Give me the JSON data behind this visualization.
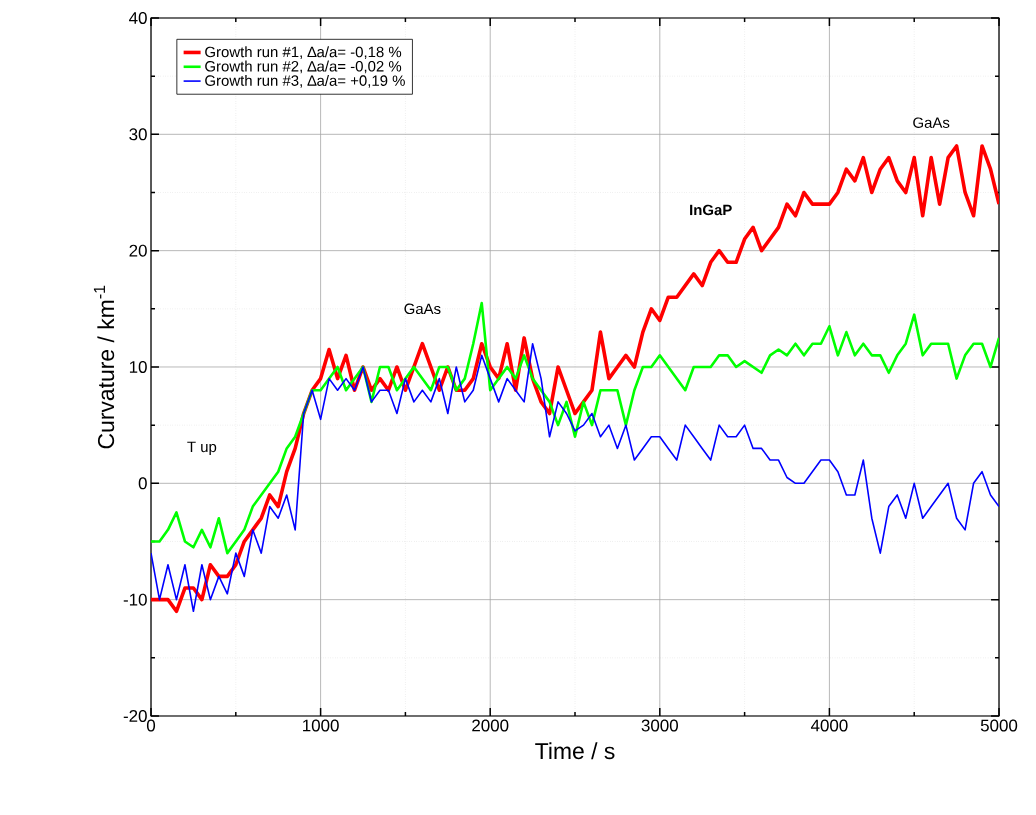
{
  "chart_data": {
    "type": "line",
    "xlabel": "Time / s",
    "ylabel": "Curvature / km$^{-1}$",
    "xlim": [
      0,
      5000
    ],
    "ylim": [
      -20,
      40
    ],
    "xticks": [
      0,
      1000,
      2000,
      3000,
      4000,
      5000
    ],
    "yticks": [
      -20,
      -10,
      0,
      10,
      20,
      30,
      40
    ],
    "grid": true,
    "legend": "top left",
    "marker": "none",
    "line_style": "solid",
    "annotations": [
      "T up",
      "GaAs",
      "InGaP",
      "GaAs"
    ],
    "x": [
      0,
      50,
      100,
      150,
      200,
      250,
      300,
      350,
      400,
      450,
      500,
      550,
      600,
      650,
      700,
      750,
      800,
      850,
      900,
      950,
      1000,
      1050,
      1100,
      1150,
      1200,
      1250,
      1300,
      1350,
      1400,
      1450,
      1500,
      1550,
      1600,
      1650,
      1700,
      1750,
      1800,
      1850,
      1900,
      1950,
      2000,
      2050,
      2100,
      2150,
      2200,
      2250,
      2300,
      2350,
      2400,
      2450,
      2500,
      2550,
      2600,
      2650,
      2700,
      2750,
      2800,
      2850,
      2900,
      2950,
      3000,
      3050,
      3100,
      3150,
      3200,
      3250,
      3300,
      3350,
      3400,
      3450,
      3500,
      3550,
      3600,
      3650,
      3700,
      3750,
      3800,
      3850,
      3900,
      3950,
      4000,
      4050,
      4100,
      4150,
      4200,
      4250,
      4300,
      4350,
      4400,
      4450,
      4500,
      4550,
      4600,
      4650,
      4700,
      4750,
      4800,
      4850,
      4900,
      4950,
      5000
    ],
    "series": [
      {
        "name": "Growth run #1, ∆a/a= -0,18 %",
        "color": "#ff0000",
        "values": [
          -10,
          -10,
          -10,
          -11,
          -9,
          -9,
          -10,
          -7,
          -8,
          -8,
          -7,
          -5,
          -4,
          -3,
          -1,
          -2,
          1,
          3,
          6,
          8,
          9,
          11.5,
          9,
          11,
          8,
          10,
          8,
          9,
          8,
          10,
          8,
          10,
          12,
          10,
          8,
          10,
          8,
          8,
          9,
          12,
          10,
          9,
          12,
          8,
          12.5,
          9,
          7,
          6,
          10,
          8,
          6,
          7,
          8,
          13,
          9,
          10,
          11,
          10,
          13,
          15,
          14,
          16,
          16,
          17,
          18,
          17,
          19,
          20,
          19,
          19,
          21,
          22,
          20,
          21,
          22,
          24,
          23,
          25,
          24,
          24,
          24,
          25,
          27,
          26,
          28,
          25,
          27,
          28,
          26,
          25,
          28,
          23,
          28,
          24,
          28,
          29,
          25,
          23,
          29,
          27,
          24
        ]
      },
      {
        "name": "Growth run #2, ∆a/a= -0,02 %",
        "color": "#00ff00",
        "values": [
          -5,
          -5,
          -4,
          -2.5,
          -5,
          -5.5,
          -4,
          -5.5,
          -3,
          -6,
          -5,
          -4,
          -2,
          -1,
          0,
          1,
          3,
          4,
          6,
          8,
          8,
          9,
          10,
          8,
          9,
          10,
          7,
          10,
          10,
          8,
          9,
          10,
          9,
          8,
          10,
          10,
          8,
          9,
          12,
          15.5,
          8,
          9,
          10,
          9,
          11,
          9,
          8,
          7,
          5,
          7,
          4,
          7,
          5,
          8,
          8,
          8,
          5,
          8,
          10,
          10,
          11,
          10,
          9,
          8,
          10,
          10,
          10,
          11,
          11,
          10,
          10.5,
          10,
          9.5,
          11,
          11.5,
          11,
          12,
          11,
          12,
          12,
          13.5,
          11,
          13,
          11,
          12,
          11,
          11,
          9.5,
          11,
          12,
          14.5,
          11,
          12,
          12,
          12,
          9,
          11,
          12,
          12,
          10,
          12.5
        ]
      },
      {
        "name": "Growth run #3, ∆a/a= +0,19 %",
        "color": "#0000ff",
        "values": [
          -6,
          -10,
          -7,
          -10,
          -7,
          -11,
          -7,
          -10,
          -8,
          -9.5,
          -6,
          -8,
          -4,
          -6,
          -2,
          -3,
          -1,
          -4,
          6,
          8,
          5.5,
          9,
          8,
          9,
          8,
          10,
          7,
          8,
          8,
          6,
          9,
          7,
          8,
          7,
          9,
          6,
          10,
          7,
          8,
          11,
          9,
          7,
          9,
          8,
          7,
          12,
          9,
          4,
          7,
          6,
          4.5,
          5,
          6,
          4,
          5,
          3,
          5,
          2,
          3,
          4,
          4,
          3,
          2,
          5,
          4,
          3,
          2,
          5,
          4,
          4,
          5,
          3,
          3,
          2,
          2,
          0.5,
          0,
          0,
          1,
          2,
          2,
          1,
          -1,
          -1,
          2,
          -3,
          -6,
          -2,
          -1,
          -3,
          0,
          -3,
          -2,
          -1,
          0,
          -3,
          -4,
          0,
          1,
          -1,
          -2
        ]
      }
    ]
  }
}
